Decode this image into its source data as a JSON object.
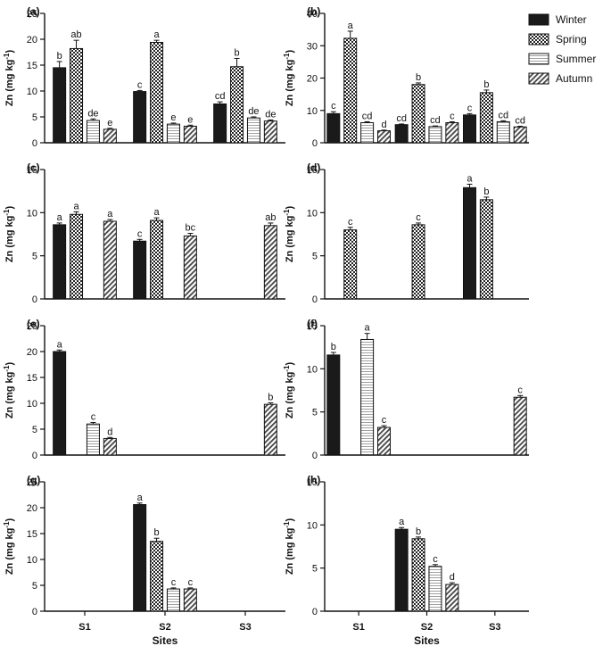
{
  "legend": {
    "items": [
      {
        "name": "Winter",
        "pattern": "solid"
      },
      {
        "name": "Spring",
        "pattern": "checker"
      },
      {
        "name": "Summer",
        "pattern": "lines"
      },
      {
        "name": "Autumn",
        "pattern": "diagonal"
      }
    ]
  },
  "chart_data": [
    {
      "type": "bar",
      "panel": "(a)",
      "categories": [
        "S1",
        "S2",
        "S3"
      ],
      "ylabel": "Zn (mg kg-1)",
      "ylim": [
        0,
        25
      ],
      "yticks": [
        0,
        5,
        10,
        15,
        20,
        25
      ],
      "series": [
        {
          "name": "Winter",
          "values": [
            14.5,
            9.9,
            7.5
          ],
          "errors": [
            1.2,
            0.2,
            0.4
          ],
          "letters": [
            "b",
            "c",
            "cd"
          ]
        },
        {
          "name": "Spring",
          "values": [
            18.2,
            19.4,
            14.7
          ],
          "errors": [
            1.6,
            0.4,
            1.6
          ],
          "letters": [
            "ab",
            "a",
            "b"
          ]
        },
        {
          "name": "Summer",
          "values": [
            4.3,
            3.6,
            4.8
          ],
          "errors": [
            0.3,
            0.2,
            0.2
          ],
          "letters": [
            "de",
            "e",
            "de"
          ]
        },
        {
          "name": "Autumn",
          "values": [
            2.6,
            3.2,
            4.2
          ],
          "errors": [
            0.2,
            0.2,
            0.2
          ],
          "letters": [
            "e",
            "e",
            "de"
          ]
        }
      ]
    },
    {
      "type": "bar",
      "panel": "(b)",
      "categories": [
        "S1",
        "S2",
        "S3"
      ],
      "ylabel": "Zn (mg kg-1)",
      "ylim": [
        0,
        40
      ],
      "yticks": [
        0,
        10,
        20,
        30,
        40
      ],
      "series": [
        {
          "name": "Winter",
          "values": [
            9.0,
            5.6,
            8.6
          ],
          "errors": [
            0.6,
            0.2,
            0.4
          ],
          "letters": [
            "c",
            "cd",
            "c"
          ]
        },
        {
          "name": "Spring",
          "values": [
            32.3,
            18.0,
            15.5
          ],
          "errors": [
            2.2,
            0.5,
            0.8
          ],
          "letters": [
            "a",
            "b",
            "b"
          ]
        },
        {
          "name": "Summer",
          "values": [
            6.2,
            5.0,
            6.5
          ],
          "errors": [
            0.3,
            0.2,
            0.3
          ],
          "letters": [
            "cd",
            "cd",
            "cd"
          ]
        },
        {
          "name": "Autumn",
          "values": [
            3.7,
            6.2,
            4.9
          ],
          "errors": [
            0.2,
            0.3,
            0.2
          ],
          "letters": [
            "d",
            "c",
            "cd"
          ]
        }
      ]
    },
    {
      "type": "bar",
      "panel": "(c)",
      "categories": [
        "S1",
        "S2",
        "S3"
      ],
      "ylabel": "Zn (mg kg-1)",
      "ylim": [
        0,
        15
      ],
      "yticks": [
        0,
        5,
        10,
        15
      ],
      "series": [
        {
          "name": "Winter",
          "values": [
            8.6,
            6.7,
            null
          ],
          "errors": [
            0.2,
            0.2,
            null
          ],
          "letters": [
            "a",
            "c",
            ""
          ]
        },
        {
          "name": "Spring",
          "values": [
            9.8,
            9.1,
            null
          ],
          "errors": [
            0.3,
            0.3,
            null
          ],
          "letters": [
            "a",
            "a",
            ""
          ]
        },
        {
          "name": "Summer",
          "values": [
            null,
            null,
            null
          ],
          "errors": [
            null,
            null,
            null
          ],
          "letters": [
            "",
            "",
            ""
          ]
        },
        {
          "name": "Autumn",
          "values": [
            9.0,
            7.3,
            8.5
          ],
          "errors": [
            0.2,
            0.3,
            0.3
          ],
          "letters": [
            "a",
            "bc",
            "ab"
          ]
        }
      ]
    },
    {
      "type": "bar",
      "panel": "(d)",
      "categories": [
        "S1",
        "S2",
        "S3"
      ],
      "ylabel": "Zn (mg kg-1)",
      "ylim": [
        0,
        15
      ],
      "yticks": [
        0,
        5,
        10,
        15
      ],
      "series": [
        {
          "name": "Winter",
          "values": [
            null,
            null,
            12.9
          ],
          "errors": [
            null,
            null,
            0.4
          ],
          "letters": [
            "",
            "",
            "a"
          ]
        },
        {
          "name": "Spring",
          "values": [
            8.0,
            8.6,
            11.5
          ],
          "errors": [
            0.3,
            0.2,
            0.3
          ],
          "letters": [
            "c",
            "c",
            "b"
          ]
        },
        {
          "name": "Summer",
          "values": [
            null,
            null,
            null
          ],
          "errors": [
            null,
            null,
            null
          ],
          "letters": [
            "",
            "",
            ""
          ]
        },
        {
          "name": "Autumn",
          "values": [
            null,
            null,
            null
          ],
          "errors": [
            null,
            null,
            null
          ],
          "letters": [
            "",
            "",
            ""
          ]
        }
      ]
    },
    {
      "type": "bar",
      "panel": "(e)",
      "categories": [
        "S1",
        "S2",
        "S3"
      ],
      "ylabel": "Zn (mg kg-1)",
      "ylim": [
        0,
        25
      ],
      "yticks": [
        0,
        5,
        10,
        15,
        20,
        25
      ],
      "series": [
        {
          "name": "Winter",
          "values": [
            20.0,
            null,
            null
          ],
          "errors": [
            0.3,
            null,
            null
          ],
          "letters": [
            "a",
            "",
            ""
          ]
        },
        {
          "name": "Spring",
          "values": [
            null,
            null,
            null
          ],
          "errors": [
            null,
            null,
            null
          ],
          "letters": [
            "",
            "",
            ""
          ]
        },
        {
          "name": "Summer",
          "values": [
            6.0,
            null,
            null
          ],
          "errors": [
            0.3,
            null,
            null
          ],
          "letters": [
            "c",
            "",
            ""
          ]
        },
        {
          "name": "Autumn",
          "values": [
            3.2,
            null,
            9.8
          ],
          "errors": [
            0.2,
            null,
            0.3
          ],
          "letters": [
            "d",
            "",
            "b"
          ]
        }
      ]
    },
    {
      "type": "bar",
      "panel": "(f)",
      "categories": [
        "S1",
        "S2",
        "S3"
      ],
      "ylabel": "Zn (mg kg-1)",
      "ylim": [
        0,
        15
      ],
      "yticks": [
        0,
        5,
        10,
        15
      ],
      "series": [
        {
          "name": "Winter",
          "values": [
            11.6,
            null,
            null
          ],
          "errors": [
            0.3,
            null,
            null
          ],
          "letters": [
            "b",
            "",
            ""
          ]
        },
        {
          "name": "Spring",
          "values": [
            null,
            null,
            null
          ],
          "errors": [
            null,
            null,
            null
          ],
          "letters": [
            "",
            "",
            ""
          ]
        },
        {
          "name": "Summer",
          "values": [
            13.4,
            null,
            null
          ],
          "errors": [
            0.7,
            null,
            null
          ],
          "letters": [
            "a",
            "",
            ""
          ]
        },
        {
          "name": "Autumn",
          "values": [
            3.2,
            null,
            6.7
          ],
          "errors": [
            0.2,
            null,
            0.2
          ],
          "letters": [
            "c",
            "",
            "c"
          ]
        }
      ]
    },
    {
      "type": "bar",
      "panel": "(g)",
      "categories": [
        "S1",
        "S2",
        "S3"
      ],
      "xlabel": "Sites",
      "ylabel": "Zn (mg kg-1)",
      "ylim": [
        0,
        25
      ],
      "yticks": [
        0,
        5,
        10,
        15,
        20,
        25
      ],
      "series": [
        {
          "name": "Winter",
          "values": [
            null,
            20.6,
            null
          ],
          "errors": [
            null,
            0.3,
            null
          ],
          "letters": [
            "",
            "a",
            ""
          ]
        },
        {
          "name": "Spring",
          "values": [
            null,
            13.5,
            null
          ],
          "errors": [
            null,
            0.6,
            null
          ],
          "letters": [
            "",
            "b",
            ""
          ]
        },
        {
          "name": "Summer",
          "values": [
            null,
            4.3,
            null
          ],
          "errors": [
            null,
            0.2,
            null
          ],
          "letters": [
            "",
            "c",
            ""
          ]
        },
        {
          "name": "Autumn",
          "values": [
            null,
            4.3,
            null
          ],
          "errors": [
            null,
            0.2,
            null
          ],
          "letters": [
            "",
            "c",
            ""
          ]
        }
      ]
    },
    {
      "type": "bar",
      "panel": "(h)",
      "categories": [
        "S1",
        "S2",
        "S3"
      ],
      "xlabel": "Sites",
      "ylabel": "Zn (mg kg-1)",
      "ylim": [
        0,
        15
      ],
      "yticks": [
        0,
        5,
        10,
        15
      ],
      "series": [
        {
          "name": "Winter",
          "values": [
            null,
            9.5,
            null
          ],
          "errors": [
            null,
            0.2,
            null
          ],
          "letters": [
            "",
            "a",
            ""
          ]
        },
        {
          "name": "Spring",
          "values": [
            null,
            8.4,
            null
          ],
          "errors": [
            null,
            0.2,
            null
          ],
          "letters": [
            "",
            "b",
            ""
          ]
        },
        {
          "name": "Summer",
          "values": [
            null,
            5.2,
            null
          ],
          "errors": [
            null,
            0.2,
            null
          ],
          "letters": [
            "",
            "c",
            ""
          ]
        },
        {
          "name": "Autumn",
          "values": [
            null,
            3.1,
            null
          ],
          "errors": [
            null,
            0.2,
            null
          ],
          "letters": [
            "",
            "d",
            ""
          ]
        }
      ]
    }
  ]
}
